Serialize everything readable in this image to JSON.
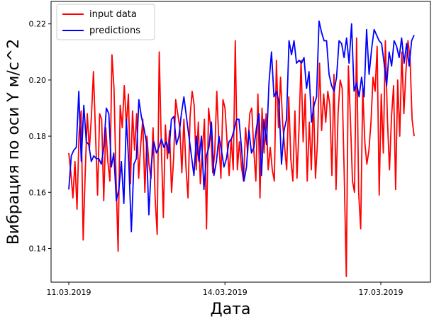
{
  "chart_data": {
    "type": "line",
    "title": "",
    "xlabel": "Дата",
    "ylabel": "Вибрация по оси Y м/с^2",
    "xlim": [
      0,
      100
    ],
    "ylim": [
      0.128,
      0.228
    ],
    "x_ticks": [
      {
        "label": "11.03.2019",
        "value": 0
      },
      {
        "label": "14.03.2019",
        "value": 49.8
      },
      {
        "label": "17.03.2019",
        "value": 99.5
      }
    ],
    "y_ticks": [
      0.14,
      0.16,
      0.18,
      0.2,
      0.22
    ],
    "y_tick_labels": [
      "0.14",
      "0.16",
      "0.18",
      "0.20",
      "0.22"
    ],
    "grid": false,
    "legend_position": "top-left",
    "series": [
      {
        "name": "input data",
        "color": "#ff0000",
        "values": [
          0.174,
          0.167,
          0.158,
          0.171,
          0.154,
          0.181,
          0.189,
          0.143,
          0.167,
          0.188,
          0.175,
          0.187,
          0.203,
          0.181,
          0.159,
          0.188,
          0.186,
          0.157,
          0.183,
          0.171,
          0.164,
          0.209,
          0.197,
          0.165,
          0.139,
          0.191,
          0.183,
          0.198,
          0.184,
          0.195,
          0.163,
          0.189,
          0.175,
          0.188,
          0.165,
          0.177,
          0.186,
          0.16,
          0.18,
          0.17,
          0.165,
          0.183,
          0.158,
          0.145,
          0.21,
          0.177,
          0.151,
          0.184,
          0.172,
          0.182,
          0.16,
          0.172,
          0.193,
          0.188,
          0.183,
          0.167,
          0.186,
          0.169,
          0.158,
          0.187,
          0.196,
          0.191,
          0.168,
          0.185,
          0.163,
          0.175,
          0.186,
          0.147,
          0.19,
          0.183,
          0.167,
          0.174,
          0.196,
          0.178,
          0.165,
          0.193,
          0.19,
          0.178,
          0.166,
          0.179,
          0.168,
          0.214,
          0.168,
          0.178,
          0.169,
          0.164,
          0.183,
          0.174,
          0.188,
          0.19,
          0.175,
          0.164,
          0.195,
          0.158,
          0.19,
          0.174,
          0.188,
          0.168,
          0.176,
          0.168,
          0.164,
          0.207,
          0.183,
          0.201,
          0.185,
          0.176,
          0.168,
          0.194,
          0.172,
          0.164,
          0.189,
          0.165,
          0.183,
          0.207,
          0.178,
          0.195,
          0.164,
          0.185,
          0.168,
          0.194,
          0.165,
          0.178,
          0.206,
          0.182,
          0.195,
          0.185,
          0.196,
          0.191,
          0.166,
          0.202,
          0.161,
          0.188,
          0.2,
          0.197,
          0.166,
          0.13,
          0.205,
          0.186,
          0.164,
          0.16,
          0.215,
          0.16,
          0.147,
          0.197,
          0.178,
          0.17,
          0.175,
          0.185,
          0.201,
          0.196,
          0.212,
          0.159,
          0.195,
          0.174,
          0.214,
          0.186,
          0.168,
          0.187,
          0.198,
          0.161,
          0.2,
          0.18,
          0.21,
          0.188,
          0.203,
          0.214,
          0.208,
          0.186,
          0.18
        ]
      },
      {
        "name": "predictions",
        "color": "#0000ff",
        "values": [
          0.161,
          0.173,
          0.175,
          0.176,
          0.196,
          0.171,
          0.191,
          0.178,
          0.177,
          0.171,
          0.173,
          0.172,
          0.172,
          0.17,
          0.176,
          0.19,
          0.188,
          0.169,
          0.174,
          0.157,
          0.161,
          0.171,
          0.156,
          0.186,
          0.17,
          0.146,
          0.17,
          0.172,
          0.193,
          0.187,
          0.183,
          0.178,
          0.152,
          0.17,
          0.178,
          0.174,
          0.176,
          0.179,
          0.176,
          0.178,
          0.174,
          0.186,
          0.187,
          0.177,
          0.18,
          0.188,
          0.194,
          0.187,
          0.18,
          0.173,
          0.166,
          0.18,
          0.171,
          0.18,
          0.161,
          0.173,
          0.176,
          0.185,
          0.166,
          0.171,
          0.18,
          0.175,
          0.169,
          0.172,
          0.178,
          0.179,
          0.182,
          0.186,
          0.186,
          0.176,
          0.164,
          0.169,
          0.182,
          0.174,
          0.176,
          0.183,
          0.188,
          0.166,
          0.186,
          0.177,
          0.199,
          0.21,
          0.194,
          0.196,
          0.192,
          0.17,
          0.182,
          0.186,
          0.214,
          0.209,
          0.214,
          0.206,
          0.207,
          0.206,
          0.208,
          0.197,
          0.203,
          0.185,
          0.191,
          0.194,
          0.221,
          0.217,
          0.214,
          0.214,
          0.202,
          0.198,
          0.196,
          0.201,
          0.214,
          0.213,
          0.208,
          0.215,
          0.206,
          0.22,
          0.196,
          0.199,
          0.194,
          0.201,
          0.194,
          0.218,
          0.202,
          0.211,
          0.218,
          0.216,
          0.214,
          0.213,
          0.206,
          0.198,
          0.21,
          0.205,
          0.214,
          0.212,
          0.208,
          0.215,
          0.206,
          0.213,
          0.205,
          0.214,
          0.216
        ]
      }
    ]
  }
}
